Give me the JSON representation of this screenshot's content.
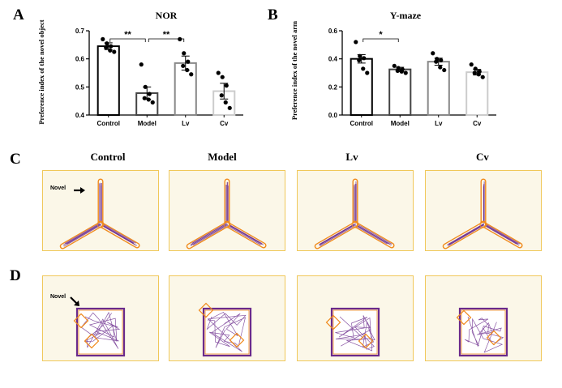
{
  "panels": {
    "A": "A",
    "B": "B",
    "C": "C",
    "D": "D"
  },
  "maze_columns": [
    "Control",
    "Model",
    "Lv",
    "Cv"
  ],
  "novel_label": "Novel",
  "colors": {
    "arena_bg": "#fbf7e8",
    "arena_border": "#f0c85a",
    "track": "#6a2a8c",
    "maze_outline": "#f08a1c"
  },
  "chart_data": [
    {
      "type": "bar",
      "title": "NOR",
      "ylabel": "Preference index of the novel object",
      "xlabel": "",
      "categories": [
        "Control",
        "Model",
        "Lv",
        "Cv"
      ],
      "values": [
        0.645,
        0.478,
        0.585,
        0.485
      ],
      "errors": [
        0.012,
        0.022,
        0.025,
        0.028
      ],
      "points": [
        [
          0.67,
          0.655,
          0.645,
          0.64,
          0.63,
          0.625
        ],
        [
          0.58,
          0.5,
          0.475,
          0.46,
          0.455,
          0.445
        ],
        [
          0.67,
          0.62,
          0.59,
          0.575,
          0.56,
          0.545
        ],
        [
          0.55,
          0.535,
          0.505,
          0.47,
          0.445,
          0.425
        ]
      ],
      "ylim": [
        0.4,
        0.7
      ],
      "yticks": [
        "0.4",
        "0.5",
        "0.6",
        "0.7"
      ],
      "bar_colors": [
        "#000000",
        "#444444",
        "#888888",
        "#cccccc"
      ],
      "significance": [
        {
          "from": 0,
          "to": 1,
          "label": "**"
        },
        {
          "from": 1,
          "to": 2,
          "label": "**"
        }
      ]
    },
    {
      "type": "bar",
      "title": "Y-maze",
      "ylabel": "Preference index of the novel arm",
      "xlabel": "",
      "categories": [
        "Control",
        "Model",
        "Lv",
        "Cv"
      ],
      "values": [
        0.4,
        0.325,
        0.38,
        0.305
      ],
      "errors": [
        0.03,
        0.015,
        0.025,
        0.02
      ],
      "points": [
        [
          0.52,
          0.42,
          0.405,
          0.39,
          0.33,
          0.3
        ],
        [
          0.35,
          0.335,
          0.325,
          0.315,
          0.31,
          0.3
        ],
        [
          0.44,
          0.4,
          0.39,
          0.38,
          0.34,
          0.32
        ],
        [
          0.36,
          0.33,
          0.31,
          0.3,
          0.29,
          0.27
        ]
      ],
      "ylim": [
        0.0,
        0.6
      ],
      "yticks": [
        "0.0",
        "0.2",
        "0.4",
        "0.6"
      ],
      "bar_colors": [
        "#000000",
        "#444444",
        "#888888",
        "#cccccc"
      ],
      "significance": [
        {
          "from": 0,
          "to": 1,
          "label": "*"
        }
      ]
    }
  ]
}
